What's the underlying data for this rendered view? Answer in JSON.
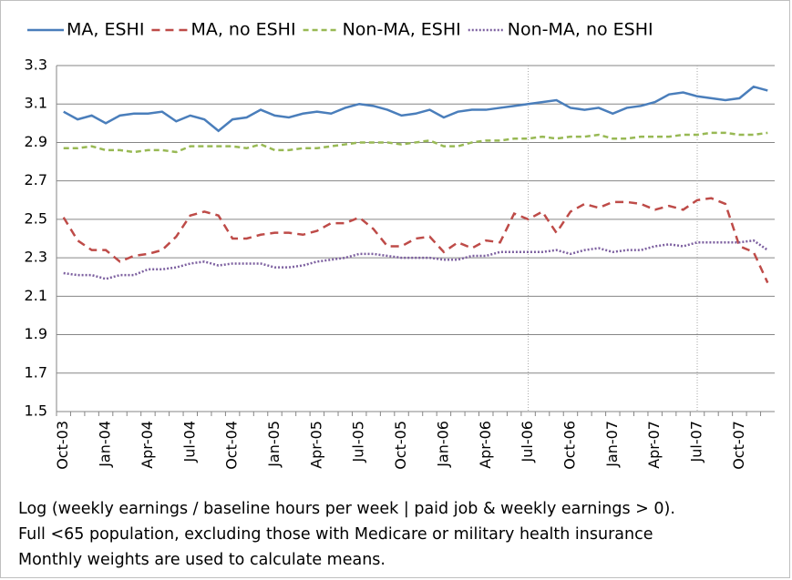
{
  "chart_data": {
    "type": "line",
    "categories": [
      "Oct-03",
      null,
      null,
      "Jan-04",
      null,
      null,
      "Apr-04",
      null,
      null,
      "Jul-04",
      null,
      null,
      "Oct-04",
      null,
      null,
      "Jan-05",
      null,
      null,
      "Apr-05",
      null,
      null,
      "Jul-05",
      null,
      null,
      "Oct-05",
      null,
      null,
      "Jan-06",
      null,
      null,
      "Apr-06",
      null,
      null,
      "Jul-06",
      null,
      null,
      "Oct-06",
      null,
      null,
      "Jan-07",
      null,
      null,
      "Apr-07",
      null,
      null,
      "Jul-07",
      null,
      null,
      "Oct-07",
      null,
      null
    ],
    "series": [
      {
        "name": "MA, ESHI",
        "color": "#4a7ebb",
        "dash": "solid",
        "values": [
          3.06,
          3.02,
          3.04,
          3.0,
          3.04,
          3.05,
          3.05,
          3.06,
          3.01,
          3.04,
          3.02,
          2.96,
          3.02,
          3.03,
          3.07,
          3.04,
          3.03,
          3.05,
          3.06,
          3.05,
          3.08,
          3.1,
          3.09,
          3.07,
          3.04,
          3.05,
          3.07,
          3.03,
          3.06,
          3.07,
          3.07,
          3.08,
          3.09,
          3.1,
          3.11,
          3.12,
          3.08,
          3.07,
          3.08,
          3.05,
          3.08,
          3.09,
          3.11,
          3.15,
          3.16,
          3.14,
          3.13,
          3.12,
          3.13,
          3.19,
          3.17
        ]
      },
      {
        "name": "MA, no ESHI",
        "color": "#be4b48",
        "dash": "dashed",
        "values": [
          2.51,
          2.39,
          2.34,
          2.34,
          2.28,
          2.31,
          2.32,
          2.34,
          2.41,
          2.52,
          2.54,
          2.52,
          2.4,
          2.4,
          2.42,
          2.43,
          2.43,
          2.42,
          2.44,
          2.48,
          2.48,
          2.51,
          2.45,
          2.36,
          2.36,
          2.4,
          2.41,
          2.33,
          2.38,
          2.35,
          2.39,
          2.38,
          2.53,
          2.5,
          2.54,
          2.43,
          2.54,
          2.58,
          2.56,
          2.59,
          2.59,
          2.58,
          2.55,
          2.57,
          2.55,
          2.6,
          2.61,
          2.58,
          2.36,
          2.33,
          2.17
        ]
      },
      {
        "name": "Non-MA, ESHI",
        "color": "#98b954",
        "dash": "short-dashed",
        "values": [
          2.87,
          2.87,
          2.88,
          2.86,
          2.86,
          2.85,
          2.86,
          2.86,
          2.85,
          2.88,
          2.88,
          2.88,
          2.88,
          2.87,
          2.89,
          2.86,
          2.86,
          2.87,
          2.87,
          2.88,
          2.89,
          2.9,
          2.9,
          2.9,
          2.89,
          2.9,
          2.91,
          2.88,
          2.88,
          2.9,
          2.91,
          2.91,
          2.92,
          2.92,
          2.93,
          2.92,
          2.93,
          2.93,
          2.94,
          2.92,
          2.92,
          2.93,
          2.93,
          2.93,
          2.94,
          2.94,
          2.95,
          2.95,
          2.94,
          2.94,
          2.95
        ]
      },
      {
        "name": "Non-MA, no ESHI",
        "color": "#7d60a0",
        "dash": "dotted",
        "values": [
          2.22,
          2.21,
          2.21,
          2.19,
          2.21,
          2.21,
          2.24,
          2.24,
          2.25,
          2.27,
          2.28,
          2.26,
          2.27,
          2.27,
          2.27,
          2.25,
          2.25,
          2.26,
          2.28,
          2.29,
          2.3,
          2.32,
          2.32,
          2.31,
          2.3,
          2.3,
          2.3,
          2.29,
          2.29,
          2.31,
          2.31,
          2.33,
          2.33,
          2.33,
          2.33,
          2.34,
          2.32,
          2.34,
          2.35,
          2.33,
          2.34,
          2.34,
          2.36,
          2.37,
          2.36,
          2.38,
          2.38,
          2.38,
          2.38,
          2.39,
          2.34
        ]
      }
    ],
    "ylim": [
      1.5,
      3.3
    ],
    "yticks": [
      {
        "value": 1.5,
        "label": "1.5"
      },
      {
        "value": 1.7,
        "label": "1.7"
      },
      {
        "value": 1.9,
        "label": "1.9"
      },
      {
        "value": 2.1,
        "label": "2.1"
      },
      {
        "value": 2.3,
        "label": "2.3"
      },
      {
        "value": 2.5,
        "label": "2.5"
      },
      {
        "value": 2.7,
        "label": "2.7"
      },
      {
        "value": 2.9,
        "label": "2.9"
      },
      {
        "value": 3.1,
        "label": "3.1"
      },
      {
        "value": 3.3,
        "label": "3.3"
      }
    ],
    "grid": true,
    "legend": "top",
    "reference_lines": [
      "Jul-06",
      "Jul-07"
    ],
    "notes": [
      "Log (weekly earnings / baseline hours per week | paid job & weekly earnings > 0).",
      "Full <65 population, excluding those with Medicare or military health insurance",
      "Monthly weights are used to calculate means."
    ]
  }
}
